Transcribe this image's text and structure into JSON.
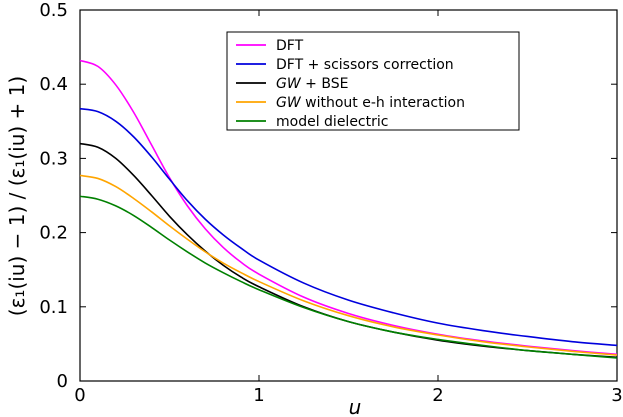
{
  "chart_data": {
    "type": "line",
    "xlabel": "u",
    "ylabel": "(ε₁(iu) − 1) / (ε₁(iu) + 1)",
    "xlim": [
      0,
      3
    ],
    "ylim": [
      0,
      0.5
    ],
    "x_ticks": [
      "0",
      "1",
      "2",
      "3"
    ],
    "y_ticks": [
      "0",
      "0.1",
      "0.2",
      "0.3",
      "0.4",
      "0.5"
    ],
    "grid": false,
    "legend_position": "top-right",
    "x": [
      0,
      0.1,
      0.2,
      0.3,
      0.4,
      0.5,
      0.6,
      0.7,
      0.8,
      0.9,
      1.0,
      1.25,
      1.5,
      1.75,
      2.0,
      2.25,
      2.5,
      2.75,
      3.0
    ],
    "series": [
      {
        "name": "DFT",
        "color": "#ff00ff",
        "values": [
          0.432,
          0.424,
          0.399,
          0.362,
          0.318,
          0.274,
          0.236,
          0.205,
          0.18,
          0.16,
          0.144,
          0.113,
          0.091,
          0.075,
          0.063,
          0.054,
          0.047,
          0.041,
          0.036
        ]
      },
      {
        "name": "DFT + scissors correction",
        "color": "#0000dd",
        "values": [
          0.367,
          0.363,
          0.35,
          0.329,
          0.302,
          0.272,
          0.243,
          0.218,
          0.197,
          0.179,
          0.163,
          0.132,
          0.109,
          0.092,
          0.078,
          0.068,
          0.06,
          0.053,
          0.048
        ]
      },
      {
        "name": "GW + BSE",
        "color": "#000000",
        "values": [
          0.32,
          0.315,
          0.3,
          0.277,
          0.25,
          0.222,
          0.197,
          0.175,
          0.156,
          0.14,
          0.127,
          0.1,
          0.08,
          0.066,
          0.055,
          0.047,
          0.041,
          0.036,
          0.032
        ]
      },
      {
        "name": "GW without e-h interaction",
        "color": "#ffa500",
        "values": [
          0.277,
          0.273,
          0.262,
          0.246,
          0.228,
          0.209,
          0.191,
          0.174,
          0.159,
          0.146,
          0.134,
          0.108,
          0.088,
          0.073,
          0.062,
          0.053,
          0.046,
          0.04,
          0.035
        ]
      },
      {
        "name": "model dielectric",
        "color": "#008000",
        "values": [
          0.249,
          0.245,
          0.236,
          0.223,
          0.207,
          0.19,
          0.174,
          0.159,
          0.146,
          0.134,
          0.123,
          0.099,
          0.08,
          0.066,
          0.056,
          0.048,
          0.041,
          0.036,
          0.031
        ]
      }
    ]
  }
}
